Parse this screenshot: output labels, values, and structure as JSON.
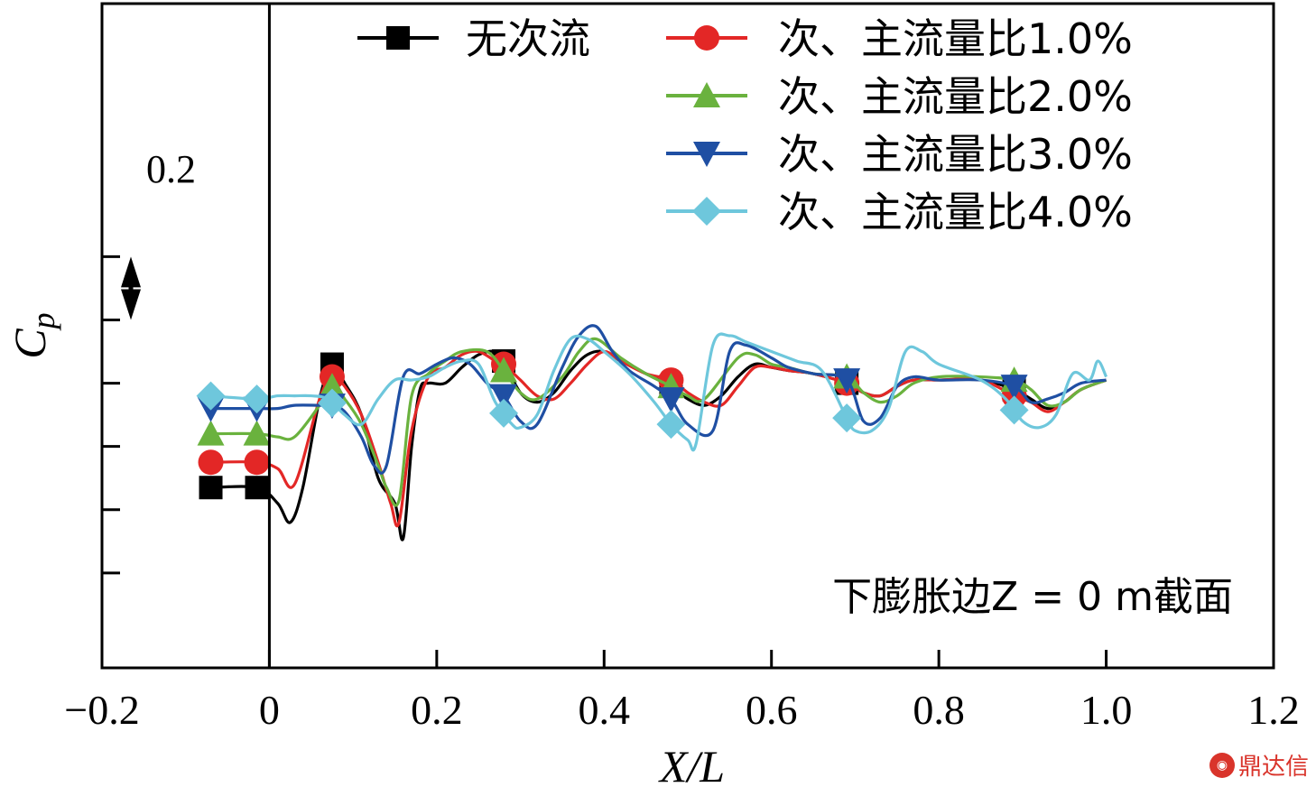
{
  "chart_data": {
    "type": "line",
    "xlabel": "X/L",
    "ylabel": "Cp",
    "xlim": [
      -0.2,
      1.2
    ],
    "ylim": [
      -0.9,
      1.2
    ],
    "x_ticks": [
      "−0.2",
      "0",
      "0.2",
      "0.4",
      "0.6",
      "0.8",
      "1.0",
      "1.2"
    ],
    "x_tick_values": [
      -0.2,
      0,
      0.2,
      0.4,
      0.6,
      0.8,
      1.0,
      1.2
    ],
    "y_tick_values": [
      -0.6,
      -0.4,
      -0.2,
      0,
      0.2,
      0.4
    ],
    "y_tick_labels_shown": false,
    "scale_bar": {
      "label": "0.2",
      "value": 0.2
    },
    "annotation": "下膨胀边Z = 0 m截面",
    "grid": false,
    "legend_position": "top-right",
    "series": [
      {
        "name": "无次流",
        "color": "#000000",
        "marker": "square",
        "x": [
          -0.07,
          -0.015,
          0.01,
          0.025,
          0.04,
          0.06,
          0.075,
          0.09,
          0.11,
          0.13,
          0.15,
          0.16,
          0.17,
          0.18,
          0.19,
          0.21,
          0.23,
          0.25,
          0.27,
          0.28,
          0.3,
          0.32,
          0.34,
          0.36,
          0.38,
          0.4,
          0.42,
          0.45,
          0.48,
          0.5,
          0.52,
          0.54,
          0.56,
          0.58,
          0.6,
          0.62,
          0.65,
          0.69,
          0.71,
          0.73,
          0.75,
          0.77,
          0.8,
          0.85,
          0.89,
          0.91,
          0.93,
          0.95,
          0.97,
          1.0
        ],
        "y": [
          -0.33,
          -0.33,
          -0.38,
          -0.44,
          -0.33,
          -0.05,
          0.06,
          0.0,
          -0.1,
          -0.3,
          -0.38,
          -0.49,
          -0.2,
          -0.02,
          0.0,
          0.0,
          0.05,
          0.09,
          0.1,
          0.07,
          -0.03,
          -0.06,
          -0.03,
          0.04,
          0.09,
          0.1,
          0.07,
          0.03,
          -0.01,
          -0.05,
          -0.07,
          -0.04,
          0.02,
          0.06,
          0.05,
          0.04,
          0.03,
          0.0,
          -0.03,
          -0.04,
          -0.01,
          0.01,
          0.01,
          0.01,
          -0.02,
          -0.05,
          -0.08,
          -0.06,
          -0.02,
          0.01
        ]
      },
      {
        "name": "次、主流量比1.0%",
        "color": "#e32726",
        "marker": "circle",
        "x": [
          -0.07,
          -0.015,
          0.01,
          0.03,
          0.06,
          0.075,
          0.09,
          0.11,
          0.13,
          0.145,
          0.155,
          0.17,
          0.19,
          0.21,
          0.23,
          0.25,
          0.27,
          0.28,
          0.3,
          0.32,
          0.34,
          0.36,
          0.38,
          0.4,
          0.42,
          0.45,
          0.48,
          0.5,
          0.52,
          0.54,
          0.56,
          0.58,
          0.6,
          0.62,
          0.65,
          0.69,
          0.71,
          0.73,
          0.75,
          0.77,
          0.8,
          0.85,
          0.89,
          0.91,
          0.93,
          0.95,
          0.97,
          1.0
        ],
        "y": [
          -0.25,
          -0.25,
          -0.27,
          -0.32,
          -0.05,
          0.02,
          -0.01,
          -0.1,
          -0.25,
          -0.38,
          -0.44,
          -0.15,
          0.02,
          0.05,
          0.09,
          0.1,
          0.07,
          0.06,
          0.01,
          -0.04,
          -0.05,
          0.0,
          0.06,
          0.1,
          0.07,
          0.03,
          0.01,
          -0.03,
          -0.06,
          -0.07,
          -0.01,
          0.05,
          0.05,
          0.04,
          0.03,
          0.0,
          -0.03,
          -0.04,
          -0.01,
          0.01,
          0.01,
          0.01,
          -0.04,
          -0.06,
          -0.09,
          -0.06,
          -0.02,
          0.01
        ]
      },
      {
        "name": "次、主流量比2.0%",
        "color": "#6ab23e",
        "marker": "triangle-up",
        "x": [
          -0.07,
          -0.015,
          0.01,
          0.03,
          0.06,
          0.075,
          0.09,
          0.11,
          0.13,
          0.14,
          0.155,
          0.17,
          0.19,
          0.21,
          0.23,
          0.26,
          0.28,
          0.3,
          0.32,
          0.35,
          0.37,
          0.39,
          0.42,
          0.45,
          0.48,
          0.5,
          0.52,
          0.56,
          0.58,
          0.6,
          0.62,
          0.65,
          0.69,
          0.71,
          0.73,
          0.75,
          0.77,
          0.8,
          0.85,
          0.89,
          0.91,
          0.93,
          0.95,
          0.97,
          1.0
        ],
        "y": [
          -0.16,
          -0.16,
          -0.17,
          -0.17,
          -0.07,
          -0.01,
          -0.05,
          -0.13,
          -0.26,
          -0.33,
          -0.37,
          -0.04,
          0.03,
          0.07,
          0.1,
          0.1,
          0.04,
          -0.03,
          -0.05,
          0.02,
          0.1,
          0.14,
          0.08,
          0.03,
          -0.01,
          -0.04,
          -0.05,
          0.08,
          0.09,
          0.06,
          0.05,
          0.03,
          0.02,
          -0.03,
          -0.06,
          -0.04,
          0.0,
          0.02,
          0.02,
          0.01,
          -0.02,
          -0.07,
          -0.06,
          -0.02,
          0.01
        ]
      },
      {
        "name": "次、主流量比3.0%",
        "color": "#1f4fa3",
        "marker": "triangle-down",
        "x": [
          -0.07,
          -0.015,
          0.01,
          0.03,
          0.06,
          0.075,
          0.09,
          0.11,
          0.125,
          0.14,
          0.16,
          0.18,
          0.2,
          0.22,
          0.24,
          0.26,
          0.28,
          0.3,
          0.32,
          0.35,
          0.37,
          0.39,
          0.41,
          0.43,
          0.46,
          0.48,
          0.5,
          0.53,
          0.55,
          0.57,
          0.6,
          0.62,
          0.65,
          0.69,
          0.71,
          0.73,
          0.75,
          0.77,
          0.8,
          0.85,
          0.89,
          0.91,
          0.93,
          0.95,
          0.97,
          1.0
        ],
        "y": [
          -0.08,
          -0.08,
          -0.08,
          -0.07,
          -0.07,
          -0.07,
          -0.09,
          -0.17,
          -0.26,
          -0.26,
          0.02,
          0.03,
          0.06,
          0.08,
          0.06,
          0.0,
          -0.04,
          -0.12,
          -0.13,
          0.05,
          0.15,
          0.18,
          0.1,
          0.04,
          -0.01,
          -0.05,
          -0.13,
          -0.15,
          0.1,
          0.12,
          0.08,
          0.05,
          0.03,
          0.01,
          -0.12,
          -0.11,
          -0.01,
          0.02,
          0.01,
          0.01,
          -0.01,
          -0.06,
          -0.05,
          -0.03,
          0.0,
          0.01
        ]
      },
      {
        "name": "次、主流量比4.0%",
        "color": "#6ec7dc",
        "marker": "diamond",
        "x": [
          -0.07,
          -0.015,
          0.01,
          0.03,
          0.05,
          0.07,
          0.09,
          0.11,
          0.13,
          0.15,
          0.17,
          0.19,
          0.21,
          0.23,
          0.25,
          0.27,
          0.29,
          0.3,
          0.32,
          0.34,
          0.36,
          0.38,
          0.4,
          0.43,
          0.46,
          0.48,
          0.5,
          0.51,
          0.53,
          0.55,
          0.57,
          0.6,
          0.63,
          0.66,
          0.69,
          0.7,
          0.72,
          0.74,
          0.76,
          0.78,
          0.8,
          0.85,
          0.88,
          0.9,
          0.92,
          0.94,
          0.96,
          0.98,
          0.99,
          1.0
        ],
        "y": [
          -0.04,
          -0.05,
          -0.04,
          -0.04,
          -0.04,
          -0.05,
          -0.1,
          -0.13,
          -0.05,
          0.01,
          0.01,
          0.02,
          0.05,
          0.07,
          0.06,
          -0.06,
          -0.13,
          -0.14,
          -0.1,
          0.04,
          0.14,
          0.14,
          0.1,
          0.03,
          -0.06,
          -0.13,
          -0.18,
          -0.19,
          0.12,
          0.15,
          0.13,
          0.1,
          0.07,
          0.04,
          -0.11,
          -0.15,
          -0.15,
          -0.08,
          0.1,
          0.1,
          0.06,
          0.01,
          -0.05,
          -0.12,
          -0.14,
          -0.1,
          0.03,
          0.01,
          0.07,
          0.02
        ]
      }
    ]
  }
}
